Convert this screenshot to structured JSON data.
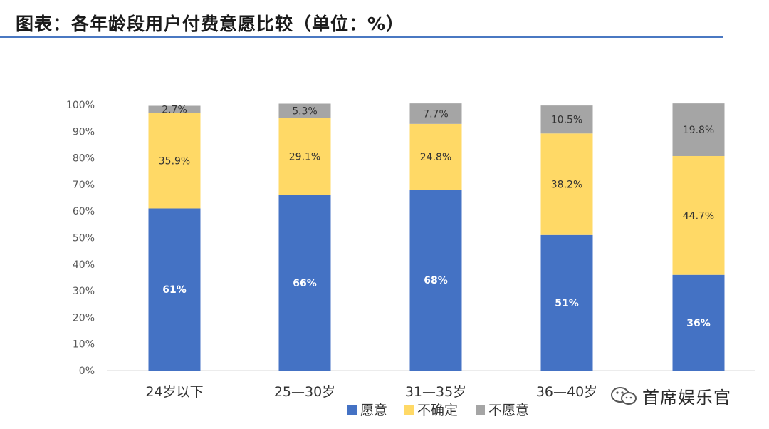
{
  "title": "图表：各年龄段用户付费意愿比较（单位：%）",
  "watermark": "首席娱乐官",
  "colors": {
    "willing": "#4472c4",
    "unsure": "#ffd966",
    "unwilling": "#a5a5a5",
    "rule": "#4a78c2"
  },
  "chart_data": {
    "type": "bar",
    "stacked": true,
    "categories": [
      "24岁以下",
      "25—30岁",
      "31—35岁",
      "36—40岁",
      ""
    ],
    "series": [
      {
        "name": "愿意",
        "values": [
          61,
          66,
          68,
          51,
          36
        ],
        "labels": [
          "61%",
          "66%",
          "68%",
          "51%",
          "36%"
        ]
      },
      {
        "name": "不确定",
        "values": [
          35.9,
          29.1,
          24.8,
          38.2,
          44.7
        ],
        "labels": [
          "35.9%",
          "29.1%",
          "24.8%",
          "38.2%",
          "44.7%"
        ]
      },
      {
        "name": "不愿意",
        "values": [
          2.7,
          5.3,
          7.7,
          10.5,
          19.8
        ],
        "labels": [
          "2.7%",
          "5.3%",
          "7.7%",
          "10.5%",
          "19.8%"
        ]
      }
    ],
    "y_ticks": [
      "0%",
      "10%",
      "20%",
      "30%",
      "40%",
      "50%",
      "60%",
      "70%",
      "80%",
      "90%",
      "100%"
    ],
    "ylim": [
      0,
      100
    ],
    "grid": false,
    "legend": "bottom"
  }
}
